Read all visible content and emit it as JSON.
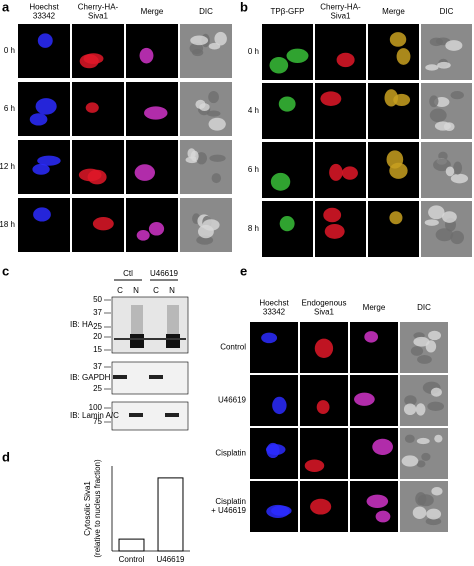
{
  "panel_a": {
    "label": "a",
    "columns": [
      [
        "Hoechst",
        "33342"
      ],
      [
        "Cherry-HA-",
        "Siva1"
      ],
      [
        "Merge"
      ],
      [
        "DIC"
      ]
    ],
    "rows": [
      "0 h",
      "6 h",
      "12 h",
      "18 h"
    ]
  },
  "panel_b": {
    "label": "b",
    "columns": [
      [
        "TPβ-GFP"
      ],
      [
        "Cherry-HA-",
        "Siva1"
      ],
      [
        "Merge"
      ],
      [
        "DIC"
      ]
    ],
    "rows": [
      "0 h",
      "4 h",
      "6 h",
      "8 h"
    ]
  },
  "panel_c": {
    "label": "c",
    "groups": [
      "Ctl",
      "U46619"
    ],
    "lanes": [
      "C",
      "N",
      "C",
      "N"
    ],
    "blots": [
      {
        "label": "IB: HA",
        "markers": [
          "50",
          "37",
          "25",
          "20",
          "15"
        ]
      },
      {
        "label": "IB: GAPDH",
        "markers": [
          "37",
          "25"
        ]
      },
      {
        "label": "IB: Lamin A/C",
        "markers": [
          "100",
          "75"
        ]
      }
    ]
  },
  "chart_data": {
    "type": "bar",
    "panel_label": "d",
    "y_label": [
      "Cytosolic Siva1",
      "(relative to nucleus fraction)"
    ],
    "categories": [
      "Control",
      "U46619"
    ],
    "values": [
      3.5,
      21.5
    ],
    "ylim": [
      0,
      25
    ],
    "color": "#ffffff",
    "edge_color": "#000000"
  },
  "panel_e": {
    "label": "e",
    "columns": [
      [
        "Hoechst",
        "33342"
      ],
      [
        "Endogenous",
        "Siva1"
      ],
      [
        "Merge"
      ],
      [
        "DIC"
      ]
    ],
    "rows": [
      [
        "Control"
      ],
      [
        "U46619"
      ],
      [
        "Cisplatin"
      ],
      [
        "Cisplatin",
        "+ U46619"
      ]
    ]
  }
}
